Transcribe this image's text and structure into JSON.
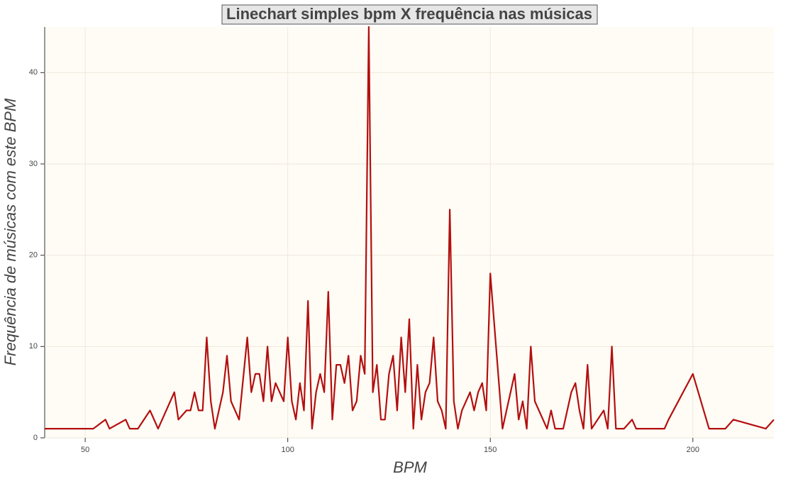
{
  "chart_data": {
    "type": "line",
    "title": "Linechart simples bpm X frequência nas músicas",
    "x_label": "BPM",
    "y_label": "Frequência de músicas com este BPM",
    "x": [
      40,
      52,
      55,
      56,
      60,
      61,
      63,
      66,
      68,
      72,
      73,
      75,
      76,
      77,
      78,
      79,
      80,
      81,
      82,
      84,
      85,
      86,
      88,
      90,
      91,
      92,
      93,
      94,
      95,
      96,
      97,
      99,
      100,
      101,
      102,
      103,
      104,
      105,
      106,
      107,
      108,
      109,
      110,
      111,
      112,
      113,
      114,
      115,
      116,
      117,
      118,
      119,
      120,
      121,
      122,
      123,
      124,
      125,
      126,
      127,
      128,
      129,
      130,
      131,
      132,
      133,
      134,
      135,
      136,
      137,
      138,
      139,
      140,
      141,
      142,
      143,
      145,
      146,
      147,
      148,
      149,
      150,
      153,
      156,
      157,
      158,
      159,
      160,
      161,
      164,
      165,
      166,
      168,
      170,
      171,
      172,
      173,
      174,
      175,
      178,
      179,
      180,
      181,
      183,
      185,
      186,
      193,
      194,
      200,
      204,
      208,
      210,
      218,
      220
    ],
    "series": [
      {
        "name": "bpm",
        "color": "#b30f0f",
        "values": [
          1,
          1,
          2,
          1,
          2,
          1,
          1,
          3,
          1,
          5,
          2,
          3,
          3,
          5,
          3,
          3,
          11,
          4,
          1,
          5,
          9,
          4,
          2,
          11,
          5,
          7,
          7,
          4,
          10,
          4,
          6,
          4,
          11,
          4,
          2,
          6,
          3,
          15,
          1,
          5,
          7,
          5,
          16,
          2,
          8,
          8,
          6,
          9,
          3,
          4,
          9,
          7,
          45,
          5,
          8,
          2,
          2,
          7,
          9,
          3,
          11,
          5,
          13,
          1,
          8,
          2,
          5,
          6,
          11,
          4,
          3,
          1,
          25,
          4,
          1,
          3,
          5,
          3,
          5,
          6,
          3,
          18,
          1,
          7,
          2,
          4,
          1,
          10,
          4,
          1,
          3,
          1,
          1,
          5,
          6,
          3,
          1,
          8,
          1,
          3,
          1,
          10,
          1,
          1,
          2,
          1,
          1,
          2,
          7,
          1,
          1,
          2,
          1,
          2
        ]
      }
    ],
    "xlim": [
      40,
      220
    ],
    "ylim": [
      0,
      45
    ],
    "xticks": [
      50,
      100,
      150,
      200
    ],
    "yticks": [
      0,
      10,
      20,
      30,
      40
    ],
    "grid": true
  }
}
